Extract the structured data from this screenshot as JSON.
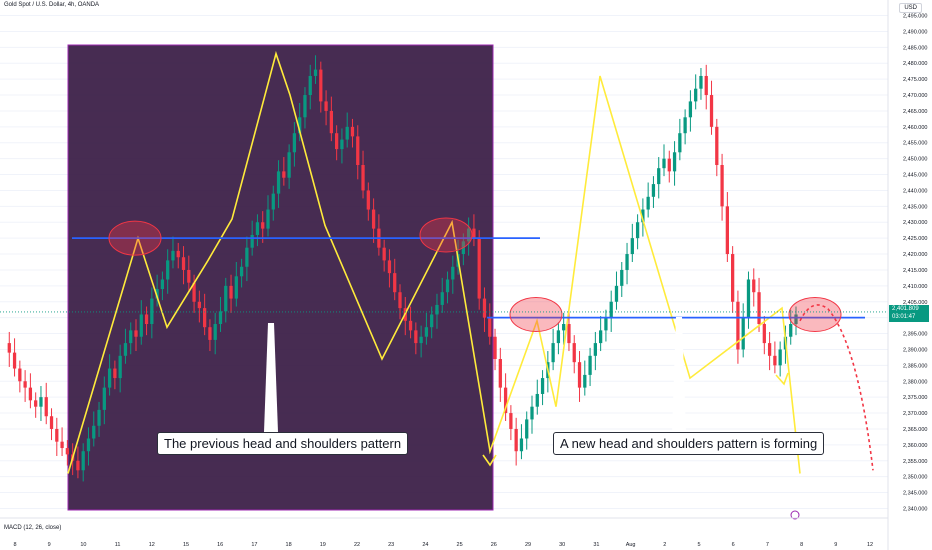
{
  "header": {
    "symbol_title": "Gold Spot / U.S. Dollar, 4h, OANDA"
  },
  "currency_label": "USD",
  "indicator_label": "MACD (12, 26, close)",
  "annotations": {
    "previous_pattern": "The previous head and shoulders pattern",
    "new_pattern": "A new head and shoulders pattern is forming"
  },
  "price_tag": {
    "price": "2,401.809",
    "countdown": "03:01:47"
  },
  "colors": {
    "up": "#089981",
    "down": "#f23645",
    "zigzag": "#ffeb3b",
    "neckline": "#2962ff",
    "highlight_box": "#9c27b0",
    "ellipse": "#f23645"
  },
  "chart_data": {
    "type": "candlestick",
    "title": "Gold Spot / U.S. Dollar, 4h, OANDA",
    "y_axis": {
      "ylim": [
        2337,
        2498
      ],
      "ticks": [
        2340,
        2345,
        2350,
        2355,
        2360,
        2365,
        2370,
        2375,
        2380,
        2385,
        2390,
        2395,
        2400,
        2405,
        2410,
        2415,
        2420,
        2425,
        2430,
        2435,
        2440,
        2445,
        2450,
        2455,
        2460,
        2465,
        2470,
        2475,
        2480,
        2485,
        2490,
        2495
      ],
      "tick_labels": [
        "2,340.000",
        "2,345.000",
        "2,350.000",
        "2,355.000",
        "2,360.000",
        "2,365.000",
        "2,370.000",
        "2,375.000",
        "2,380.000",
        "2,385.000",
        "2,390.000",
        "2,395.000",
        "2,400.000",
        "2,405.000",
        "2,410.000",
        "2,415.000",
        "2,420.000",
        "2,425.000",
        "2,430.000",
        "2,435.000",
        "2,440.000",
        "2,445.000",
        "2,450.000",
        "2,455.000",
        "2,460.000",
        "2,465.000",
        "2,470.000",
        "2,475.000",
        "2,480.000",
        "2,485.000",
        "2,490.000",
        "2,495.000"
      ]
    },
    "x_axis": {
      "tick_labels": [
        "8",
        "9",
        "10",
        "11",
        "12",
        "15",
        "16",
        "17",
        "18",
        "19",
        "22",
        "23",
        "24",
        "25",
        "26",
        "29",
        "30",
        "31",
        "Aug",
        "2",
        "5",
        "6",
        "7",
        "8",
        "9",
        "12"
      ]
    },
    "candles_close_path": [
      2392,
      2389,
      2384,
      2380,
      2378,
      2374,
      2372,
      2375,
      2369,
      2365,
      2361,
      2359,
      2357,
      2355,
      2352,
      2358,
      2362,
      2366,
      2371,
      2378,
      2384,
      2381,
      2388,
      2392,
      2396,
      2394,
      2401,
      2398,
      2406,
      2409,
      2412,
      2418,
      2421,
      2419,
      2415,
      2411,
      2405,
      2403,
      2397,
      2393,
      2398,
      2402,
      2410,
      2406,
      2413,
      2416,
      2422,
      2426,
      2430,
      2428,
      2434,
      2439,
      2446,
      2444,
      2452,
      2458,
      2463,
      2470,
      2476,
      2478,
      2468,
      2465,
      2458,
      2453,
      2456,
      2460,
      2457,
      2448,
      2440,
      2434,
      2428,
      2422,
      2418,
      2414,
      2408,
      2403,
      2399,
      2396,
      2392,
      2394,
      2397,
      2401,
      2404,
      2408,
      2412,
      2416,
      2420,
      2424,
      2428,
      2425,
      2406,
      2400,
      2394,
      2387,
      2378,
      2370,
      2365,
      2358,
      2362,
      2368,
      2372,
      2376,
      2381,
      2386,
      2392,
      2396,
      2398,
      2392,
      2386,
      2378,
      2382,
      2388,
      2392,
      2396,
      2400,
      2405,
      2410,
      2415,
      2420,
      2425,
      2430,
      2434,
      2438,
      2442,
      2447,
      2450,
      2446,
      2452,
      2458,
      2463,
      2468,
      2472,
      2476,
      2470,
      2460,
      2448,
      2435,
      2420,
      2405,
      2390,
      2400,
      2412,
      2408,
      2398,
      2392,
      2388,
      2385,
      2390,
      2394,
      2398,
      2401
    ],
    "zigzag_points": [
      [
        2351
      ],
      [
        2425
      ],
      [
        2397
      ],
      [
        2418
      ],
      [
        2431
      ],
      [
        2483
      ],
      [
        2470
      ],
      [
        2429
      ],
      [
        2387
      ],
      [
        2430
      ],
      [
        2358
      ],
      [
        2399
      ],
      [
        2372
      ],
      [
        2476
      ],
      [
        2381
      ],
      [
        2403
      ],
      [
        2351
      ]
    ],
    "necklines": [
      2425,
      2400
    ],
    "forecast_peak": 2404,
    "forecast_end": 2352,
    "series": [
      {
        "name": "Gold Spot / U.S. Dollar",
        "values": []
      }
    ]
  }
}
